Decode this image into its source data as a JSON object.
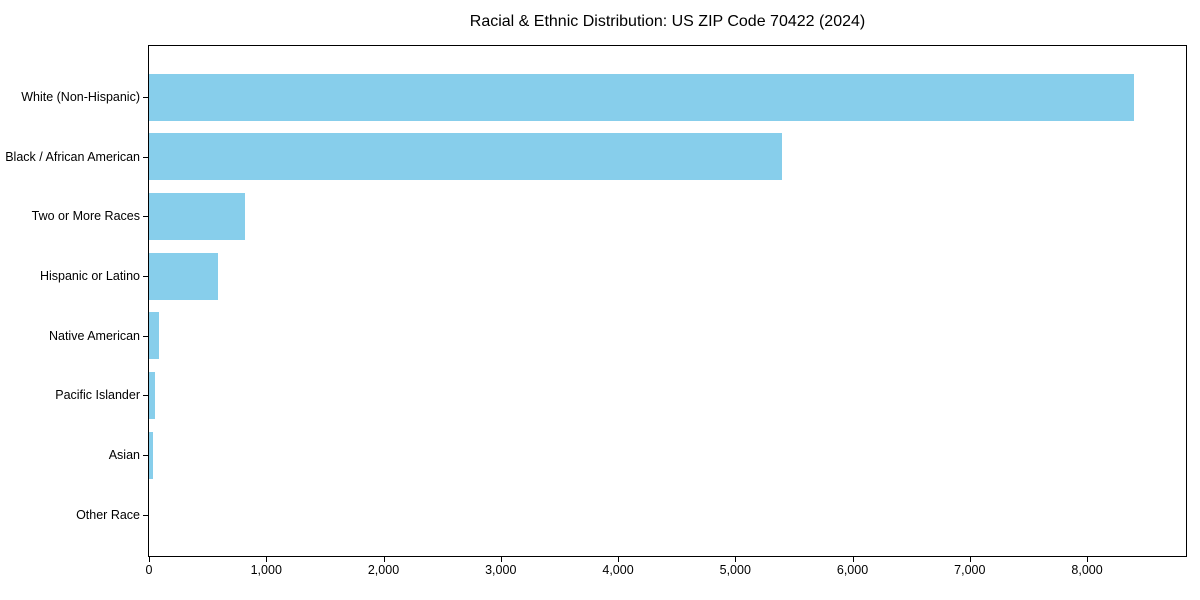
{
  "chart_data": {
    "type": "bar",
    "orientation": "horizontal",
    "title": "Racial & Ethnic Distribution: US ZIP Code 70422 (2024)",
    "categories": [
      "White (Non-Hispanic)",
      "Black / African American",
      "Two or More Races",
      "Hispanic or Latino",
      "Native American",
      "Pacific Islander",
      "Asian",
      "Other Race"
    ],
    "values": [
      8400,
      5400,
      820,
      590,
      85,
      50,
      30,
      0
    ],
    "xlabel": "",
    "ylabel": "",
    "xlim": [
      0,
      8844
    ],
    "xticks": [
      0,
      1000,
      2000,
      3000,
      4000,
      5000,
      6000,
      7000,
      8000
    ],
    "xtick_labels": [
      "0",
      "1,000",
      "2,000",
      "3,000",
      "4,000",
      "5,000",
      "6,000",
      "7,000",
      "8,000"
    ],
    "bar_color": "#87CEEB",
    "frame_color": "#000000",
    "text_color": "#000000",
    "background_color": "#ffffff",
    "grid": false,
    "legend": null
  }
}
